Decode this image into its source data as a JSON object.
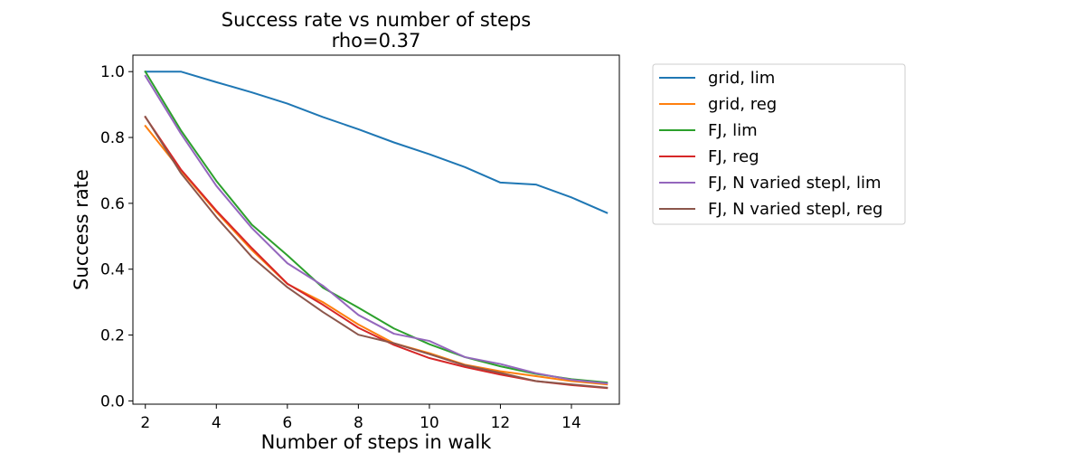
{
  "chart_data": {
    "type": "line",
    "title": "Success rate vs number of steps",
    "subtitle": "rho=0.37",
    "xlabel": "Number of steps in walk",
    "ylabel": "Success rate",
    "xlim": [
      1.65,
      15.35
    ],
    "ylim": [
      -0.01,
      1.05
    ],
    "xticks": [
      2,
      4,
      6,
      8,
      10,
      12,
      14
    ],
    "yticks": [
      0.0,
      0.2,
      0.4,
      0.6,
      0.8,
      1.0
    ],
    "xtick_labels": [
      "2",
      "4",
      "6",
      "8",
      "10",
      "12",
      "14"
    ],
    "ytick_labels": [
      "0.0",
      "0.2",
      "0.4",
      "0.6",
      "0.8",
      "1.0"
    ],
    "grid": false,
    "legend_position": "outside-right",
    "x": [
      2,
      3,
      4,
      5,
      6,
      7,
      8,
      9,
      10,
      11,
      12,
      13,
      14,
      15
    ],
    "series": [
      {
        "name": "grid, lim",
        "color": "#1f77b4",
        "values": [
          1.0,
          1.0,
          0.968,
          0.937,
          0.903,
          0.862,
          0.825,
          0.785,
          0.749,
          0.71,
          0.663,
          0.657,
          0.618,
          0.571
        ]
      },
      {
        "name": "grid, reg",
        "color": "#ff7f0e",
        "values": [
          0.835,
          0.7,
          0.574,
          0.458,
          0.355,
          0.3,
          0.232,
          0.175,
          0.145,
          0.11,
          0.09,
          0.075,
          0.06,
          0.05
        ]
      },
      {
        "name": "FJ, lim",
        "color": "#2ca02c",
        "values": [
          1.0,
          0.822,
          0.668,
          0.535,
          0.442,
          0.344,
          0.283,
          0.22,
          0.172,
          0.133,
          0.105,
          0.082,
          0.066,
          0.056
        ]
      },
      {
        "name": "FJ, reg",
        "color": "#d62728",
        "values": [
          0.862,
          0.703,
          0.578,
          0.464,
          0.356,
          0.292,
          0.222,
          0.17,
          0.13,
          0.103,
          0.08,
          0.06,
          0.048,
          0.039
        ]
      },
      {
        "name": "FJ, N varied stepl, lim",
        "color": "#9467bd",
        "values": [
          0.987,
          0.812,
          0.653,
          0.525,
          0.418,
          0.35,
          0.261,
          0.204,
          0.182,
          0.133,
          0.112,
          0.084,
          0.064,
          0.053
        ]
      },
      {
        "name": "FJ, N varied stepl, reg",
        "color": "#8c564b",
        "values": [
          0.863,
          0.692,
          0.558,
          0.437,
          0.345,
          0.27,
          0.201,
          0.175,
          0.142,
          0.108,
          0.085,
          0.06,
          0.05,
          0.04
        ]
      }
    ]
  }
}
